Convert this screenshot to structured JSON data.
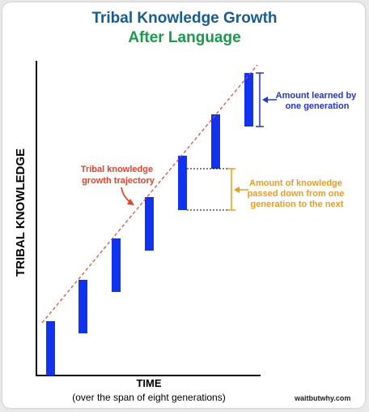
{
  "title": {
    "line1": "Tribal Knowledge Growth",
    "line2": "After Language"
  },
  "axes": {
    "y_label": "TRIBAL KNOWLEDGE",
    "x_label": "TIME",
    "x_sublabel": "(over the span of eight generations)"
  },
  "annotations": {
    "trajectory": [
      "Tribal knowledge",
      "growth trajectory"
    ],
    "learned": [
      "Amount learned by",
      "one generation"
    ],
    "passed": [
      "Amount of knowledge",
      "passed down from one",
      "generation to the next"
    ]
  },
  "credit": "waitbutwhy.com",
  "colors": {
    "title_blue": "#175c96",
    "title_green": "#1a9a4c",
    "bar": "#1133ee",
    "trajectory": "#e8412c",
    "passed": "#f39a1c",
    "learned": "#2233dd"
  }
}
